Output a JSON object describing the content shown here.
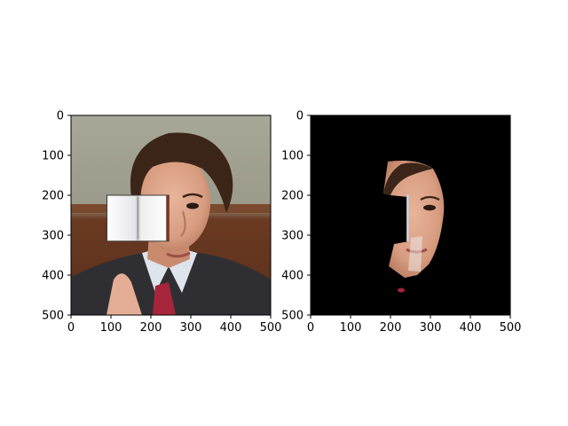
{
  "figure_title": "",
  "chart_data": [
    {
      "type": "image",
      "name": "original-with-occluder",
      "title": "",
      "xlabel": "",
      "ylabel": "",
      "xlim": [
        0,
        500
      ],
      "ylim": [
        500,
        0
      ],
      "xticks": [
        0,
        100,
        200,
        300,
        400,
        500
      ],
      "yticks": [
        0,
        100,
        200,
        300,
        400,
        500
      ],
      "content": "portrait photo of a man in a suit; an open-book occluder covers the left side of the face",
      "occluder": {
        "label": "open-book",
        "x_range": [
          90,
          245
        ],
        "y_range": [
          200,
          315
        ]
      }
    },
    {
      "type": "image",
      "name": "face-segmentation-mask",
      "title": "",
      "xlabel": "",
      "ylabel": "",
      "xlim": [
        0,
        500
      ],
      "ylim": [
        500,
        0
      ],
      "xticks": [
        0,
        100,
        200,
        300,
        400,
        500
      ],
      "yticks": [
        0,
        100,
        200,
        300,
        400,
        500
      ],
      "content": "black background with the visible (unoccluded) face region retained",
      "background_color": "#000000"
    }
  ]
}
